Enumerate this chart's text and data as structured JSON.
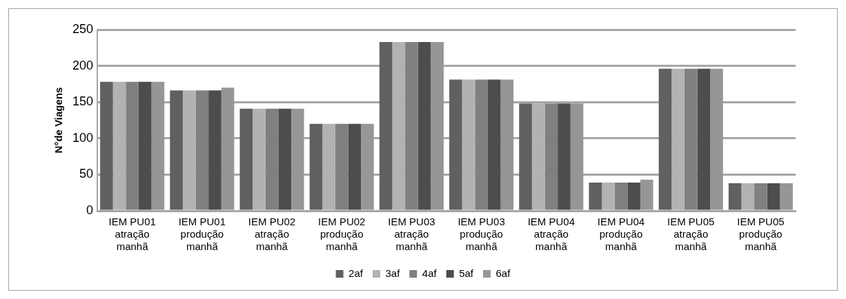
{
  "chart_data": {
    "type": "bar",
    "ylabel": "N°de Viagens",
    "categories": [
      "IEM PU01 atração manhã",
      "IEM PU01 produção manhã",
      "IEM PU02 atração manhã",
      "IEM PU02 produção manhã",
      "IEM PU03 atração manhã",
      "IEM PU03 produção manhã",
      "IEM PU04 atração manhã",
      "IEM PU04 produção manhã",
      "IEM PU05 atração manhã",
      "IEM PU05 produção manhã"
    ],
    "series": [
      {
        "name": "2af",
        "color": "#606060",
        "values": [
          178,
          166,
          141,
          120,
          233,
          181,
          148,
          39,
          196,
          38
        ]
      },
      {
        "name": "3af",
        "color": "#b2b2b2",
        "values": [
          178,
          166,
          141,
          120,
          233,
          181,
          148,
          39,
          196,
          38
        ]
      },
      {
        "name": "4af",
        "color": "#808080",
        "values": [
          178,
          166,
          141,
          120,
          233,
          181,
          148,
          39,
          196,
          38
        ]
      },
      {
        "name": "5af",
        "color": "#4d4d4d",
        "values": [
          178,
          166,
          141,
          120,
          233,
          181,
          148,
          39,
          196,
          38
        ]
      },
      {
        "name": "6af",
        "color": "#969696",
        "values": [
          178,
          170,
          141,
          120,
          233,
          181,
          148,
          43,
          196,
          38
        ]
      }
    ],
    "ylim": [
      0,
      250
    ],
    "yticks": [
      0,
      50,
      100,
      150,
      200,
      250
    ],
    "grid": "y",
    "legend": "bottom"
  }
}
